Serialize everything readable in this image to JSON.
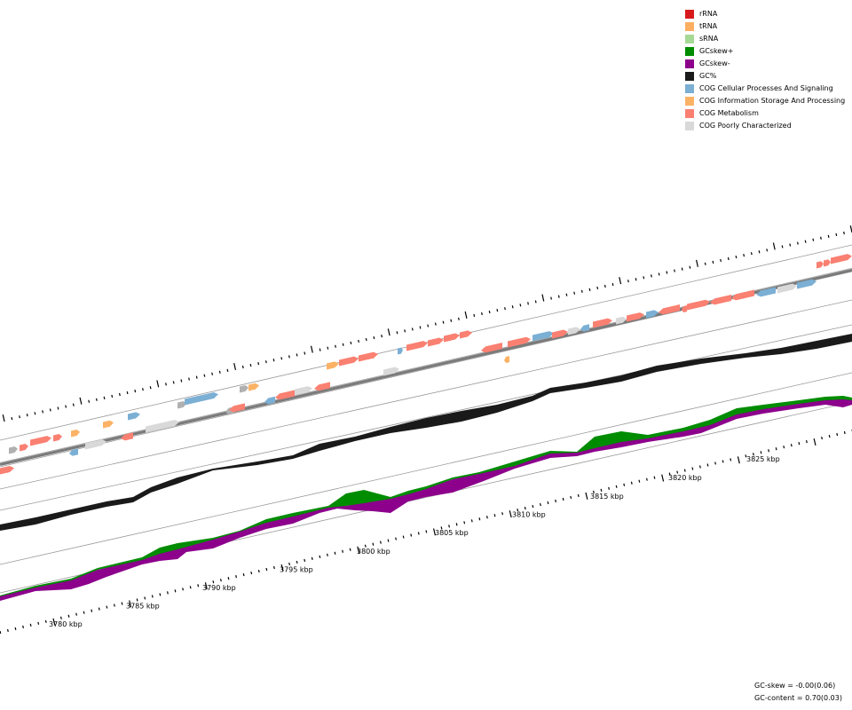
{
  "legend": {
    "items": [
      {
        "key": "rrna",
        "label": "rRNA",
        "color": "#d7191c"
      },
      {
        "key": "trna",
        "label": "tRNA",
        "color": "#fdae61"
      },
      {
        "key": "srna",
        "label": "sRNA",
        "color": "#a6d996"
      },
      {
        "key": "gcskew-pos",
        "label": "GCskew+",
        "color": "#008c00"
      },
      {
        "key": "gcskew-neg",
        "label": "GCskew-",
        "color": "#8c008c"
      },
      {
        "key": "gc",
        "label": "GC%",
        "color": "#1a1a1a"
      },
      {
        "key": "cog-cellular",
        "label": "COG Cellular Processes And Signaling",
        "color": "#7bafd4"
      },
      {
        "key": "cog-information",
        "label": "COG Information Storage And Processing",
        "color": "#fbb265"
      },
      {
        "key": "cog-metabolism",
        "label": "COG Metabolism",
        "color": "#fa8072"
      },
      {
        "key": "cog-poorly",
        "label": "COG Poorly Characterized",
        "color": "#d9d9d9"
      }
    ]
  },
  "axis": {
    "tick_labels": [
      "3780 kbp",
      "3785 kbp",
      "3790 kbp",
      "3795 kbp",
      "3800 kbp",
      "3805 kbp",
      "3810 kbp",
      "3815 kbp",
      "3820 kbp",
      "3825 kbp"
    ]
  },
  "stats": {
    "gc_skew": "GC-skew = -0.00(0.06)",
    "gc_content": "GC-content = 0.70(0.03)"
  }
}
